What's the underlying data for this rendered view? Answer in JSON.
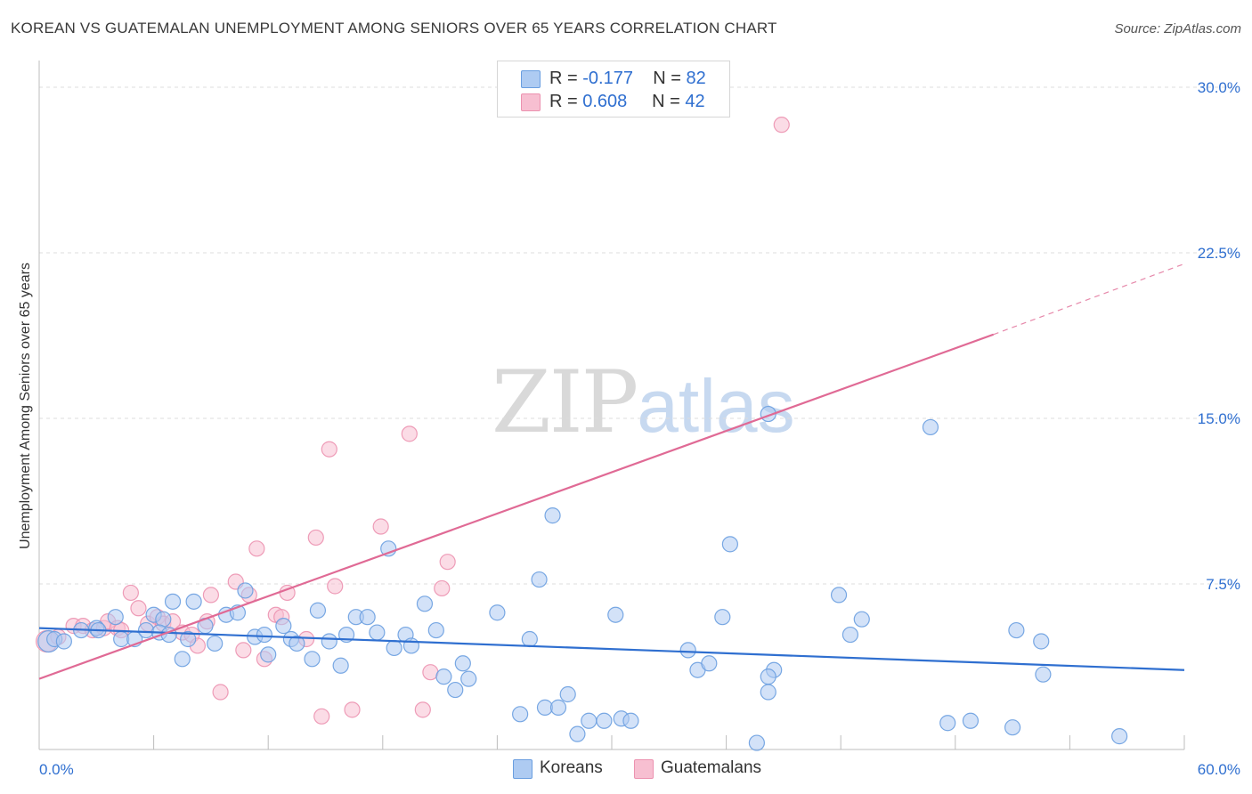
{
  "title": "KOREAN VS GUATEMALAN UNEMPLOYMENT AMONG SENIORS OVER 65 YEARS CORRELATION CHART",
  "source": "Source: ZipAtlas.com",
  "watermark": {
    "zip": "ZIP",
    "atlas": "atlas"
  },
  "legend": {
    "koreans": {
      "r_label": "R = ",
      "r_value": "-0.177",
      "n_label": "N = ",
      "n_value": "82"
    },
    "guatemalans": {
      "r_label": "R = ",
      "r_value": "0.608",
      "n_label": "N = ",
      "n_value": "42"
    }
  },
  "bottom_legend": {
    "koreans": "Koreans",
    "guatemalans": "Guatemalans"
  },
  "colors": {
    "koreans_fill": "#aecbf2",
    "koreans_stroke": "#6a9ee0",
    "koreans_line": "#2f6fd0",
    "guatemalans_fill": "#f7bfd1",
    "guatemalans_stroke": "#ec92b0",
    "guatemalans_line": "#e06a95",
    "tick_label": "#2f6fd0",
    "grid": "#dcdcdc"
  },
  "chart_data": {
    "type": "scatter",
    "title": "KOREAN VS GUATEMALAN UNEMPLOYMENT AMONG SENIORS OVER 65 YEARS CORRELATION CHART",
    "xlabel": "",
    "ylabel": "Unemployment Among Seniors over 65 years",
    "xlim": [
      0,
      60
    ],
    "ylim": [
      0,
      30
    ],
    "x_tick_labels": [
      "0.0%",
      "60.0%"
    ],
    "y_ticks": [
      7.5,
      15.0,
      22.5,
      30.0
    ],
    "y_tick_labels": [
      "7.5%",
      "15.0%",
      "22.5%",
      "30.0%"
    ],
    "grid": true,
    "legend_position": "top-center",
    "series": [
      {
        "name": "Koreans",
        "r": -0.177,
        "n": 82,
        "trend": {
          "x0": 0,
          "y0": 5.5,
          "x1": 60,
          "y1": 3.6
        },
        "points": [
          [
            0.5,
            4.9,
            "big"
          ],
          [
            0.8,
            5.0
          ],
          [
            1.3,
            4.9
          ],
          [
            2.2,
            5.4
          ],
          [
            3.0,
            5.5
          ],
          [
            4.0,
            6.0
          ],
          [
            4.3,
            5.0
          ],
          [
            5.0,
            5.0
          ],
          [
            5.6,
            5.4
          ],
          [
            6.0,
            6.1
          ],
          [
            6.5,
            5.9
          ],
          [
            6.3,
            5.3
          ],
          [
            6.8,
            5.2
          ],
          [
            7.0,
            6.7
          ],
          [
            7.5,
            4.1
          ],
          [
            7.8,
            5.0
          ],
          [
            8.1,
            6.7
          ],
          [
            8.7,
            5.6
          ],
          [
            9.2,
            4.8
          ],
          [
            9.8,
            6.1
          ],
          [
            10.4,
            6.2
          ],
          [
            10.8,
            7.2
          ],
          [
            11.3,
            5.1
          ],
          [
            11.8,
            5.2
          ],
          [
            12.0,
            4.3
          ],
          [
            12.8,
            5.6
          ],
          [
            13.2,
            5.0
          ],
          [
            13.5,
            4.8
          ],
          [
            14.3,
            4.1
          ],
          [
            14.6,
            6.3
          ],
          [
            15.2,
            4.9
          ],
          [
            15.8,
            3.8
          ],
          [
            16.1,
            5.2
          ],
          [
            16.6,
            6.0
          ],
          [
            17.2,
            6.0
          ],
          [
            17.7,
            5.3
          ],
          [
            18.3,
            9.1
          ],
          [
            18.6,
            4.6
          ],
          [
            19.2,
            5.2
          ],
          [
            19.5,
            4.7
          ],
          [
            20.2,
            6.6
          ],
          [
            20.8,
            5.4
          ],
          [
            21.2,
            3.3
          ],
          [
            21.8,
            2.7
          ],
          [
            22.2,
            3.9
          ],
          [
            22.5,
            3.2
          ],
          [
            24.0,
            6.2
          ],
          [
            25.2,
            1.6
          ],
          [
            25.7,
            5.0
          ],
          [
            26.2,
            7.7
          ],
          [
            26.5,
            1.9
          ],
          [
            26.9,
            10.6
          ],
          [
            27.2,
            1.9
          ],
          [
            27.7,
            2.5
          ],
          [
            28.2,
            0.7
          ],
          [
            28.8,
            1.3
          ],
          [
            29.6,
            1.3
          ],
          [
            30.2,
            6.1
          ],
          [
            30.5,
            1.4
          ],
          [
            31.0,
            1.3
          ],
          [
            34.0,
            4.5
          ],
          [
            34.5,
            3.6
          ],
          [
            35.1,
            3.9
          ],
          [
            35.8,
            6.0
          ],
          [
            36.2,
            9.3
          ],
          [
            37.6,
            0.3
          ],
          [
            38.2,
            15.2
          ],
          [
            38.5,
            3.6
          ],
          [
            38.2,
            3.3
          ],
          [
            38.2,
            2.6
          ],
          [
            41.9,
            7.0
          ],
          [
            42.5,
            5.2
          ],
          [
            43.1,
            5.9
          ],
          [
            46.7,
            14.6
          ],
          [
            47.6,
            1.2
          ],
          [
            48.8,
            1.3
          ],
          [
            51.0,
            1.0
          ],
          [
            51.2,
            5.4
          ],
          [
            52.5,
            4.9
          ],
          [
            52.6,
            3.4
          ],
          [
            56.6,
            0.6
          ],
          [
            3.1,
            5.4
          ]
        ]
      },
      {
        "name": "Guatemalans",
        "r": 0.608,
        "n": 42,
        "trend": {
          "x0": 0,
          "y0": 3.2,
          "x1": 50,
          "y1": 18.8,
          "dash_to": {
            "x": 60,
            "y": 22.0
          }
        },
        "points": [
          [
            0.4,
            4.9,
            "big"
          ],
          [
            1.0,
            5.1
          ],
          [
            1.8,
            5.6
          ],
          [
            2.3,
            5.6
          ],
          [
            2.8,
            5.4
          ],
          [
            3.4,
            5.5
          ],
          [
            3.6,
            5.8
          ],
          [
            4.1,
            5.5
          ],
          [
            4.3,
            5.4
          ],
          [
            4.8,
            7.1
          ],
          [
            5.2,
            6.4
          ],
          [
            5.7,
            5.7
          ],
          [
            6.2,
            6.0
          ],
          [
            6.5,
            5.7
          ],
          [
            7.0,
            5.8
          ],
          [
            7.5,
            5.3
          ],
          [
            8.0,
            5.2
          ],
          [
            8.3,
            4.7
          ],
          [
            8.8,
            5.8
          ],
          [
            9.0,
            7.0
          ],
          [
            9.5,
            2.6
          ],
          [
            10.3,
            7.6
          ],
          [
            10.7,
            4.5
          ],
          [
            11.0,
            7.0
          ],
          [
            11.4,
            9.1
          ],
          [
            11.8,
            4.1
          ],
          [
            12.4,
            6.1
          ],
          [
            12.7,
            6.0
          ],
          [
            13.0,
            7.1
          ],
          [
            14.0,
            5.0
          ],
          [
            14.5,
            9.6
          ],
          [
            14.8,
            1.5
          ],
          [
            15.2,
            13.6
          ],
          [
            15.5,
            7.4
          ],
          [
            16.4,
            1.8
          ],
          [
            17.9,
            10.1
          ],
          [
            19.4,
            14.3
          ],
          [
            20.1,
            1.8
          ],
          [
            20.5,
            3.5
          ],
          [
            21.1,
            7.3
          ],
          [
            21.4,
            8.5
          ],
          [
            38.9,
            28.3
          ]
        ]
      }
    ]
  }
}
